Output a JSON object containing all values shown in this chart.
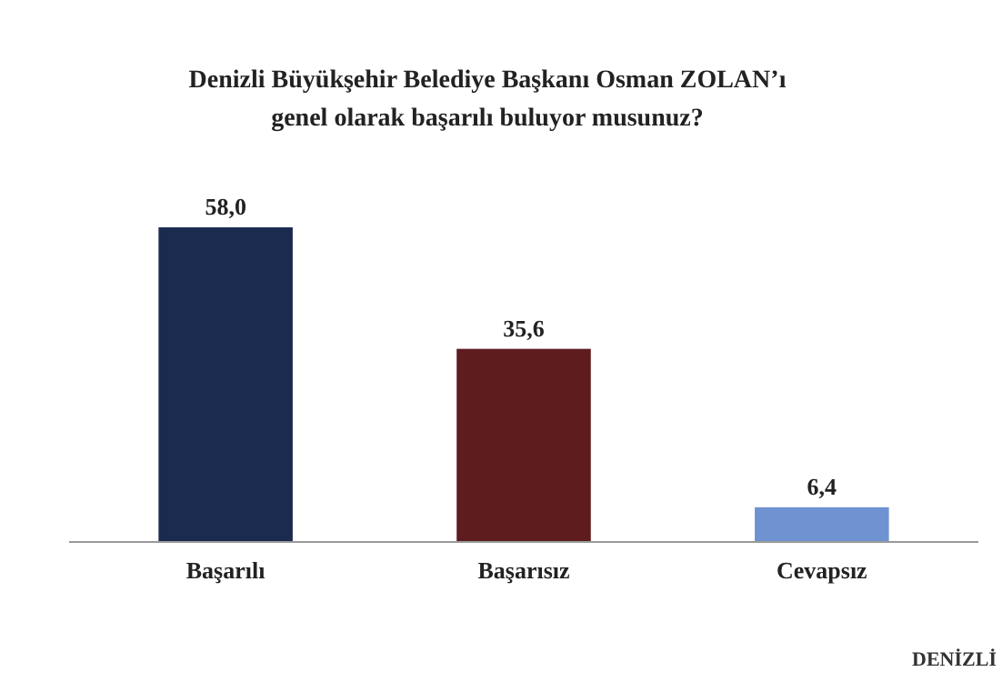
{
  "chart_data": {
    "type": "bar",
    "title": "Denizli Büyükşehir Belediye Başkanı Osman ZOLAN’ı\ngenel olarak başarılı buluyor musunuz?",
    "categories": [
      "Başarılı",
      "Başarısız",
      "Cevapsız"
    ],
    "values": [
      58.0,
      35.6,
      6.4
    ],
    "value_labels": [
      "58,0",
      "35,6",
      "6,4"
    ],
    "colors": [
      "#1b2b4f",
      "#5e1c1e",
      "#6f92d0"
    ],
    "annotations": [
      "DENİZLİ"
    ]
  }
}
